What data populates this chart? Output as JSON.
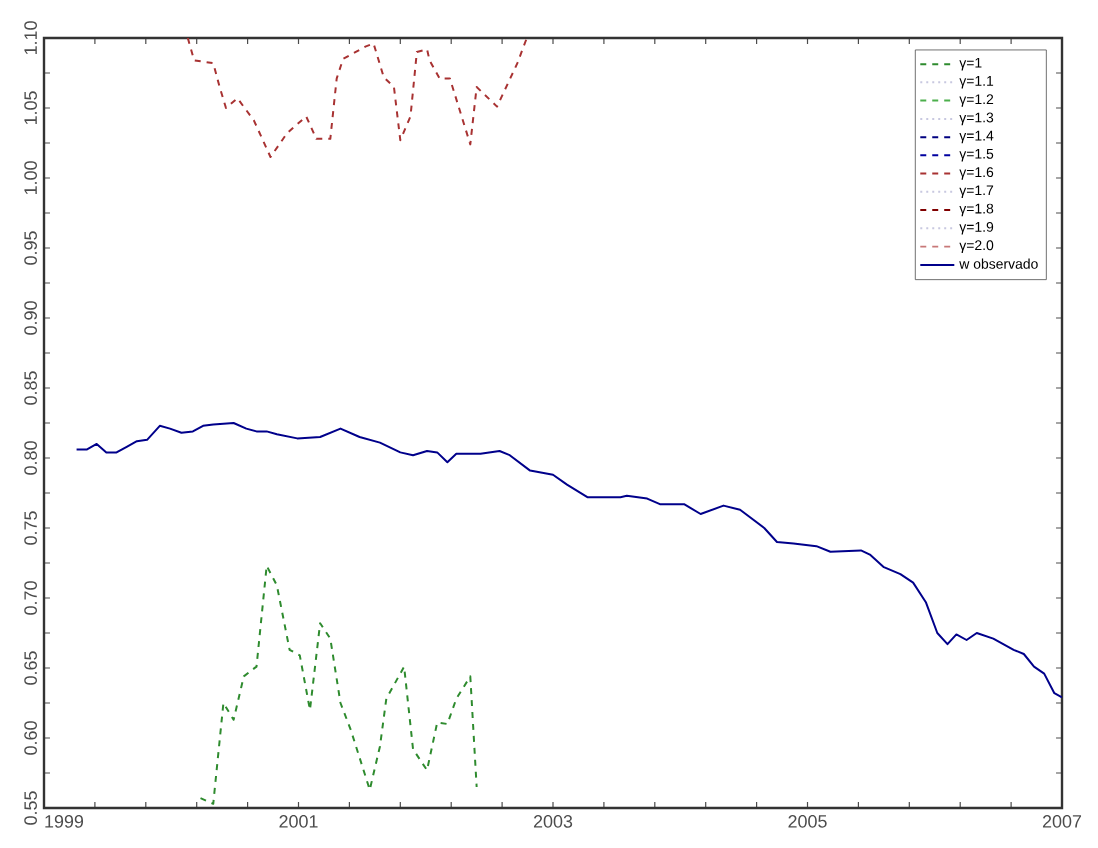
{
  "chart_data": {
    "type": "line",
    "xlim": [
      1999,
      2007
    ],
    "xticks": [
      1999,
      {
        "value": 1999.4,
        "label": null
      },
      {
        "value": 1999.8,
        "label": null
      },
      {
        "value": 2000.2,
        "label": null
      },
      {
        "value": 2000.6,
        "label": null
      },
      2001,
      {
        "value": 2001.4,
        "label": null
      },
      {
        "value": 2001.8,
        "label": null
      },
      {
        "value": 2002.2,
        "label": null
      },
      {
        "value": 2002.6,
        "label": null
      },
      2003,
      {
        "value": 2003.4,
        "label": null
      },
      {
        "value": 2003.8,
        "label": null
      },
      {
        "value": 2004.2,
        "label": null
      },
      {
        "value": 2004.6,
        "label": null
      },
      2005,
      {
        "value": 2005.4,
        "label": null
      },
      {
        "value": 2005.8,
        "label": null
      },
      {
        "value": 2006.2,
        "label": null
      },
      {
        "value": 2006.6,
        "label": null
      },
      2007
    ],
    "ylim": [
      0.55,
      1.1
    ],
    "yticks": [
      0.55,
      {
        "value": 0.6,
        "label": "0.60"
      },
      0.65,
      {
        "value": 0.7,
        "label": "0.70"
      },
      0.75,
      {
        "value": 0.8,
        "label": "0.80"
      },
      0.85,
      {
        "value": 0.9,
        "label": "0.90"
      },
      0.95,
      {
        "value": 1.0,
        "label": "1.00"
      },
      1.05,
      {
        "value": 1.1,
        "label": "1.10"
      }
    ],
    "grid": false,
    "legend": "top right",
    "marker": "none",
    "series": [
      {
        "name": "γ=1",
        "color": "#2e8b2e",
        "line_style": "dashed",
        "x": [
          2000.23,
          2000.33,
          2000.41,
          2000.49,
          2000.57,
          2000.67,
          2000.75,
          2000.83,
          2000.93,
          2001.01,
          2001.09,
          2001.17,
          2001.25,
          2001.33,
          2001.41,
          2001.56,
          2001.64,
          2001.69,
          2001.83,
          2001.9,
          2002.01,
          2002.09,
          2002.17,
          2002.24,
          2002.35,
          2002.4
        ],
        "values": [
          0.557,
          0.553,
          0.625,
          0.613,
          0.644,
          0.651,
          0.723,
          0.709,
          0.663,
          0.659,
          0.62,
          0.682,
          0.671,
          0.625,
          0.606,
          0.563,
          0.594,
          0.628,
          0.651,
          0.592,
          0.577,
          0.611,
          0.61,
          0.628,
          0.644,
          0.565
        ]
      },
      {
        "name": "γ=1.1",
        "color": "#c8c8e0",
        "line_style": "dotted"
      },
      {
        "name": "γ=1.2",
        "color": "#4caf4c",
        "line_style": "dashed"
      },
      {
        "name": "γ=1.3",
        "color": "#c8c8e0",
        "line_style": "dotted"
      },
      {
        "name": "γ=1.4",
        "color": "#000080",
        "line_style": "dashed"
      },
      {
        "name": "γ=1.5",
        "color": "#0000a0",
        "line_style": "dashed"
      },
      {
        "name": "γ=1.6",
        "color": "#a83232",
        "line_style": "dashed",
        "x": [
          2000.13,
          2000.18,
          2000.33,
          2000.38,
          2000.43,
          2000.52,
          2000.65,
          2000.78,
          2000.91,
          2001.06,
          2001.14,
          2001.25,
          2001.3,
          2001.35,
          2001.53,
          2001.59,
          2001.67,
          2001.75,
          2001.8,
          2001.88,
          2001.93,
          2002.01,
          2002.03,
          2002.11,
          2002.19,
          2002.35,
          2002.4,
          2002.56,
          2002.72,
          2002.79
        ],
        "values": [
          1.1,
          1.084,
          1.082,
          1.065,
          1.05,
          1.057,
          1.041,
          1.015,
          1.032,
          1.044,
          1.028,
          1.028,
          1.071,
          1.085,
          1.094,
          1.096,
          1.072,
          1.065,
          1.027,
          1.044,
          1.09,
          1.092,
          1.084,
          1.071,
          1.071,
          1.024,
          1.065,
          1.051,
          1.082,
          1.099
        ]
      },
      {
        "name": "γ=1.7",
        "color": "#c8c8e0",
        "line_style": "dotted"
      },
      {
        "name": "γ=1.8",
        "color": "#800000",
        "line_style": "dashed"
      },
      {
        "name": "γ=1.9",
        "color": "#c8c8e0",
        "line_style": "dotted"
      },
      {
        "name": "γ=2.0",
        "color": "#c87878",
        "line_style": "dashed"
      },
      {
        "name": "w observado",
        "color": "#00008b",
        "line_style": "solid",
        "x": [
          1999.256,
          1999.335,
          1999.414,
          1999.49,
          1999.57,
          1999.65,
          1999.73,
          1999.81,
          1999.91,
          1999.99,
          2000.08,
          2000.17,
          2000.25,
          2000.33,
          2000.49,
          2000.59,
          2000.67,
          2000.75,
          2000.83,
          2000.99,
          2001.17,
          2001.33,
          2001.48,
          2001.64,
          2001.8,
          2001.9,
          2002.01,
          2002.09,
          2002.17,
          2002.24,
          2002.43,
          2002.58,
          2002.66,
          2002.82,
          2003.0,
          2003.11,
          2003.27,
          2003.53,
          2003.58,
          2003.74,
          2003.84,
          2004.03,
          2004.16,
          2004.34,
          2004.47,
          2004.66,
          2004.76,
          2004.89,
          2005.07,
          2005.18,
          2005.42,
          2005.49,
          2005.6,
          2005.73,
          2005.83,
          2005.93,
          2006.02,
          2006.1,
          2006.17,
          2006.25,
          2006.33,
          2006.46,
          2006.62,
          2006.7,
          2006.78,
          2006.86,
          2006.94,
          2007.0
        ],
        "values": [
          0.806,
          0.806,
          0.81,
          0.804,
          0.804,
          0.808,
          0.812,
          0.813,
          0.823,
          0.821,
          0.818,
          0.819,
          0.823,
          0.824,
          0.825,
          0.821,
          0.819,
          0.819,
          0.817,
          0.814,
          0.815,
          0.821,
          0.815,
          0.811,
          0.804,
          0.802,
          0.805,
          0.804,
          0.797,
          0.803,
          0.803,
          0.805,
          0.802,
          0.791,
          0.788,
          0.781,
          0.772,
          0.772,
          0.773,
          0.771,
          0.767,
          0.767,
          0.76,
          0.766,
          0.763,
          0.75,
          0.74,
          0.739,
          0.737,
          0.733,
          0.734,
          0.731,
          0.722,
          0.717,
          0.711,
          0.697,
          0.675,
          0.667,
          0.674,
          0.67,
          0.675,
          0.671,
          0.663,
          0.66,
          0.651,
          0.646,
          0.632,
          0.629
        ]
      }
    ]
  }
}
